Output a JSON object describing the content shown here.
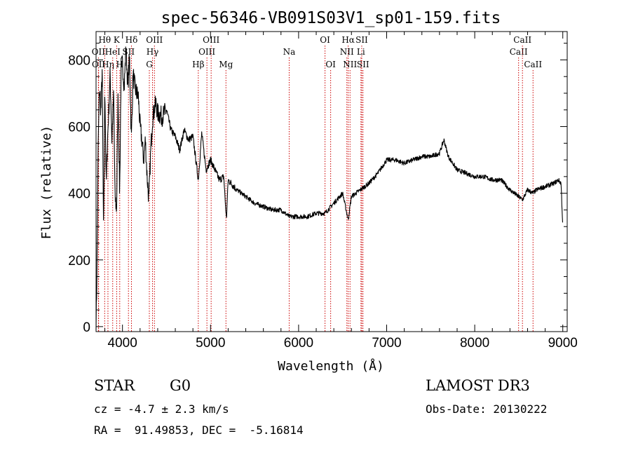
{
  "chart_data": {
    "type": "line",
    "title": "spec-56346-VB091S03V1_sp01-159.fits",
    "xlabel": "Wavelength (Å)",
    "ylabel": "Flux (relative)",
    "xlim": [
      3700,
      9050
    ],
    "ylim": [
      -15,
      885
    ],
    "x_ticks": [
      4000,
      5000,
      6000,
      7000,
      8000,
      9000
    ],
    "y_ticks": [
      0,
      200,
      400,
      600,
      800
    ],
    "grid": false,
    "line_color": "#000000",
    "marker_color": "#cc0000",
    "series": [
      {
        "x": [
          3700,
          3710,
          3725,
          3740,
          3755,
          3770,
          3785,
          3800,
          3815,
          3830,
          3845,
          3860,
          3880,
          3900,
          3915,
          3933,
          3950,
          3968,
          3985,
          4000,
          4020,
          4040,
          4060,
          4080,
          4101,
          4120,
          4140,
          4160,
          4180,
          4200,
          4220,
          4240,
          4260,
          4280,
          4300,
          4320,
          4340,
          4360,
          4380,
          4400,
          4450,
          4500,
          4550,
          4600,
          4650,
          4700,
          4750,
          4800,
          4861,
          4900,
          4950,
          5000,
          5050,
          5100,
          5150,
          5180,
          5200,
          5300,
          5400,
          5500,
          5600,
          5700,
          5800,
          5893,
          6000,
          6100,
          6200,
          6300,
          6400,
          6500,
          6563,
          6600,
          6700,
          6800,
          6900,
          7000,
          7100,
          7200,
          7300,
          7400,
          7500,
          7600,
          7650,
          7700,
          7800,
          7900,
          8000,
          8100,
          8200,
          8300,
          8400,
          8498,
          8542,
          8600,
          8662,
          8700,
          8800,
          8900,
          8950,
          8980,
          9000
        ],
        "values": [
          0,
          160,
          560,
          720,
          640,
          780,
          260,
          730,
          420,
          560,
          650,
          760,
          560,
          700,
          390,
          350,
          700,
          400,
          780,
          790,
          720,
          840,
          720,
          810,
          560,
          760,
          720,
          700,
          690,
          600,
          560,
          500,
          560,
          450,
          380,
          520,
          620,
          650,
          670,
          640,
          630,
          650,
          590,
          570,
          530,
          590,
          560,
          570,
          440,
          580,
          470,
          500,
          470,
          440,
          450,
          320,
          440,
          410,
          390,
          370,
          360,
          350,
          350,
          330,
          330,
          330,
          340,
          340,
          370,
          400,
          320,
          390,
          410,
          430,
          460,
          500,
          500,
          490,
          500,
          510,
          510,
          520,
          560,
          510,
          470,
          460,
          450,
          450,
          440,
          440,
          410,
          390,
          380,
          410,
          400,
          410,
          420,
          430,
          440,
          430,
          300
        ]
      }
    ],
    "lines": [
      {
        "label": "Hθ",
        "x": 3798,
        "row": 1
      },
      {
        "label": "OII",
        "x": 3727,
        "row": 2
      },
      {
        "label": "OII",
        "x": 3729,
        "row": 3
      },
      {
        "label": "Hη",
        "x": 3835,
        "row": 3
      },
      {
        "label": "HeI",
        "x": 3889,
        "row": 2
      },
      {
        "label": "K",
        "x": 3934,
        "row": 1
      },
      {
        "label": "H",
        "x": 3969,
        "row": 3
      },
      {
        "label": "SII",
        "x": 4068,
        "row": 2
      },
      {
        "label": "Hδ",
        "x": 4102,
        "row": 1
      },
      {
        "label": "OIII",
        "x": 4363,
        "row": 1
      },
      {
        "label": "Hγ",
        "x": 4341,
        "row": 2
      },
      {
        "label": "G",
        "x": 4305,
        "row": 3
      },
      {
        "label": "Hβ",
        "x": 4861,
        "row": 3
      },
      {
        "label": "OIII",
        "x": 5007,
        "row": 1
      },
      {
        "label": "OIII",
        "x": 4959,
        "row": 2
      },
      {
        "label": "Mg",
        "x": 5175,
        "row": 3
      },
      {
        "label": "Na",
        "x": 5893,
        "row": 2
      },
      {
        "label": "OI",
        "x": 6300,
        "row": 1
      },
      {
        "label": "OI",
        "x": 6364,
        "row": 3
      },
      {
        "label": "Hα",
        "x": 6563,
        "row": 1
      },
      {
        "label": "NII",
        "x": 6548,
        "row": 2
      },
      {
        "label": "NII",
        "x": 6584,
        "row": 3
      },
      {
        "label": "SII",
        "x": 6717,
        "row": 1
      },
      {
        "label": "Li",
        "x": 6708,
        "row": 2
      },
      {
        "label": "SII",
        "x": 6731,
        "row": 3
      },
      {
        "label": "CaII",
        "x": 8498,
        "row": 2
      },
      {
        "label": "CaII",
        "x": 8542,
        "row": 1
      },
      {
        "label": "CaII",
        "x": 8662,
        "row": 3
      }
    ]
  },
  "info": {
    "obj_class": "STAR",
    "subclass": "G0",
    "survey": "LAMOST DR3",
    "redshift": "cz = -4.7 ± 2.3 km/s",
    "obs_date": "Obs-Date: 20130222",
    "coords": "RA =  91.49853, DEC =  -5.16814"
  }
}
